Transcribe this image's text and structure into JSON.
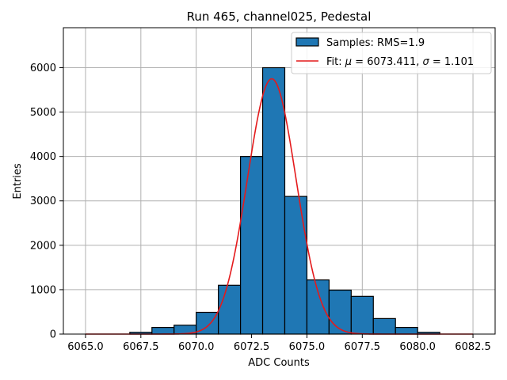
{
  "chart_data": {
    "type": "bar",
    "title": "Run 465, channel025, Pedestal",
    "xlabel": "ADC Counts",
    "ylabel": "Entries",
    "xlim": [
      6064,
      6083.5
    ],
    "ylim": [
      0,
      6900
    ],
    "xticks": [
      6065.0,
      6067.5,
      6070.0,
      6072.5,
      6075.0,
      6077.5,
      6080.0,
      6082.5
    ],
    "xtick_labels": [
      "6065.0",
      "6067.5",
      "6070.0",
      "6072.5",
      "6075.0",
      "6077.5",
      "6080.0",
      "6082.5"
    ],
    "yticks": [
      0,
      1000,
      2000,
      3000,
      4000,
      5000,
      6000
    ],
    "ytick_labels": [
      "0",
      "1000",
      "2000",
      "3000",
      "4000",
      "5000",
      "6000"
    ],
    "grid": true,
    "legend_position": "top-right",
    "histogram": {
      "name": "Samples: RMS=1.9",
      "color": "#1f77b4",
      "bin_edges": [
        6065,
        6066,
        6067,
        6068,
        6069,
        6070,
        6071,
        6072,
        6073,
        6074,
        6075,
        6076,
        6077,
        6078,
        6079,
        6080,
        6081,
        6082,
        6083
      ],
      "counts": [
        0,
        0,
        40,
        150,
        200,
        490,
        1100,
        4000,
        6000,
        3100,
        1220,
        990,
        850,
        350,
        150,
        40,
        0,
        0
      ]
    },
    "fit": {
      "name": "Fit: μ = 6073.411, σ = 1.101",
      "name_parts": {
        "prefix": "Fit: ",
        "mu": "μ",
        "mu_value": " = 6073.411, ",
        "sigma": "σ",
        "sigma_value": " = 1.101"
      },
      "color": "#e41a1c",
      "type": "gaussian",
      "mu": 6073.411,
      "sigma": 1.101,
      "amplitude": 5750,
      "x_range": [
        6065,
        6082.5
      ]
    }
  }
}
